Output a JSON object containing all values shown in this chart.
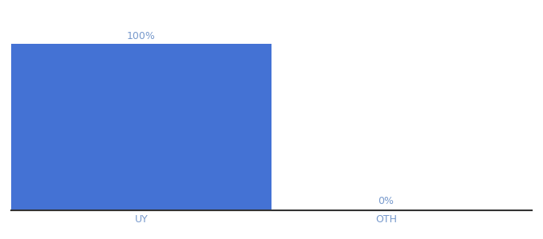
{
  "categories": [
    "UY",
    "OTH"
  ],
  "values": [
    100,
    0
  ],
  "bar_color": "#4472d4",
  "bar_width": 0.5,
  "label_texts": [
    "100%",
    "0%"
  ],
  "label_color": "#7799cc",
  "label_fontsize": 9,
  "tick_color": "#7799cc",
  "tick_fontsize": 9,
  "ylim": [
    0,
    115
  ],
  "background_color": "#ffffff",
  "spine_color": "#333333",
  "spine_linewidth": 1.5,
  "xlim": [
    0.0,
    1.0
  ],
  "x_positions": [
    0.25,
    0.72
  ]
}
